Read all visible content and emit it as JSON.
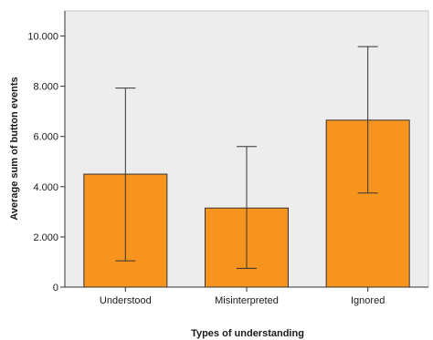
{
  "chart_data": {
    "type": "bar",
    "categories": [
      "Understood",
      "Misinterpreted",
      "Ignored"
    ],
    "values": [
      4.5,
      3.15,
      6.65
    ],
    "error_bars": {
      "lower": [
        1.05,
        0.75,
        3.75
      ],
      "upper": [
        7.93,
        5.6,
        9.58
      ]
    },
    "xlabel": "Types of understanding",
    "ylabel": "Average sum of button events",
    "ylim": [
      0,
      11
    ],
    "yticks": [
      0,
      2,
      4,
      6,
      8,
      10
    ],
    "ytick_labels": [
      "0",
      "2.000",
      "4.000",
      "6.000",
      "8.000",
      "10.000"
    ],
    "grid": false,
    "colors": {
      "bar_fill": "#f7941d",
      "bar_stroke": "#333333",
      "plot_background": "#ededed",
      "error_bar": "#333333"
    }
  }
}
